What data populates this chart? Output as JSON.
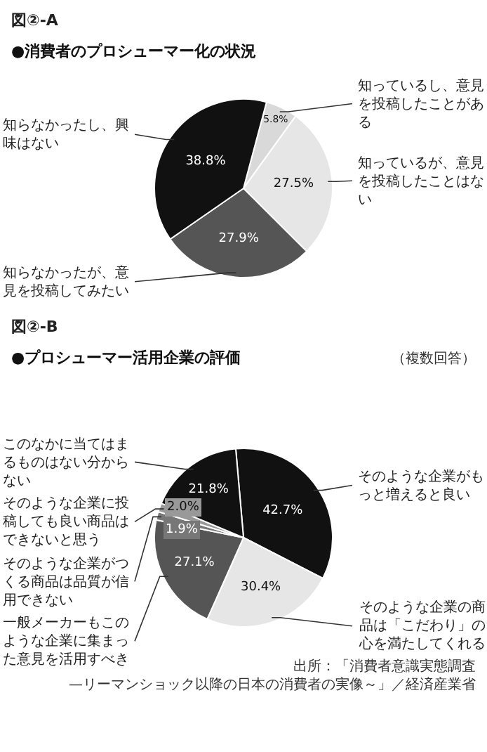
{
  "chart_data": [
    {
      "type": "pie",
      "title": "●消費者のプロシューマー化の状況",
      "subtitle": "図②-A",
      "categories": [
        "知っているし、意見を投稿したことがある",
        "知っているが、意見を投稿したことはない",
        "知らなかったが、意見を投稿してみたい",
        "知らなかったし、興味はない"
      ],
      "values": [
        5.8,
        27.5,
        27.9,
        38.8
      ],
      "value_labels": [
        "5.8%",
        "27.5%",
        "27.9%",
        "38.8%"
      ],
      "colors": [
        "#d9d9d9",
        "#e6e6e6",
        "#555555",
        "#111111"
      ],
      "legend": false
    },
    {
      "type": "pie",
      "title": "●プロシューマー活用企業の評価",
      "subtitle": "図②-B",
      "categories": [
        "そのような企業がもっと増えると良い",
        "そのような企業の商品は「こだわり」の心を満たしてくれる",
        "一般メーカーもこのような企業に集まった意見を活用すべき",
        "そのような企業がつくる商品は品質が信用できない",
        "そのような企業に投稿しても良い商品はできないと思う",
        "このなかに当てはまるものはない分からない"
      ],
      "values": [
        42.7,
        30.4,
        27.1,
        1.9,
        2.0,
        21.8
      ],
      "value_labels": [
        "42.7%",
        "30.4%",
        "27.1%",
        "1.9%",
        "2.0%",
        "21.8%"
      ],
      "colors": [
        "#111111",
        "#e6e6e6",
        "#555555",
        "#777777",
        "#999999",
        "#111111"
      ],
      "legend": false,
      "annotations": [
        "（複数回答）",
        "出所：「消費者意識実態調査—リーマンショック以降の日本の消費者の実像～」／経済産業省"
      ]
    }
  ]
}
